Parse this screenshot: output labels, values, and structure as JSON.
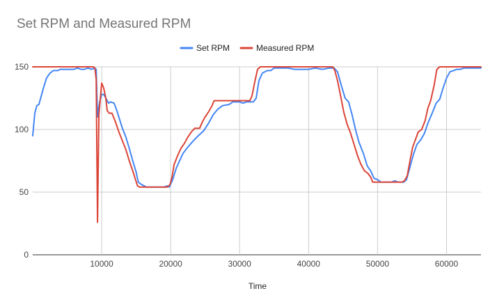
{
  "chart_data": {
    "type": "line",
    "title": "Set RPM and Measured RPM",
    "xlabel": "Time",
    "ylabel": "",
    "xlim": [
      0,
      65000
    ],
    "ylim": [
      0,
      150
    ],
    "xticks": [
      10000,
      20000,
      30000,
      40000,
      50000,
      60000
    ],
    "yticks": [
      0,
      50,
      100,
      150
    ],
    "grid": true,
    "legend_position": "top",
    "series": [
      {
        "name": "Set RPM",
        "color": "#4285F4",
        "points": [
          [
            0,
            95
          ],
          [
            300,
            113
          ],
          [
            600,
            119
          ],
          [
            900,
            120
          ],
          [
            1200,
            126
          ],
          [
            1600,
            134
          ],
          [
            2000,
            141
          ],
          [
            2500,
            145
          ],
          [
            3000,
            147
          ],
          [
            3600,
            147
          ],
          [
            4000,
            148
          ],
          [
            5000,
            148
          ],
          [
            6000,
            148
          ],
          [
            6500,
            149
          ],
          [
            7000,
            148
          ],
          [
            7500,
            148
          ],
          [
            8000,
            149
          ],
          [
            8500,
            148
          ],
          [
            9000,
            149
          ],
          [
            9200,
            148
          ],
          [
            9400,
            110
          ],
          [
            9700,
            122
          ],
          [
            10000,
            128
          ],
          [
            10300,
            128
          ],
          [
            10600,
            125
          ],
          [
            11000,
            121
          ],
          [
            11300,
            122
          ],
          [
            11800,
            121
          ],
          [
            12200,
            115
          ],
          [
            12600,
            108
          ],
          [
            13000,
            101
          ],
          [
            13500,
            94
          ],
          [
            14000,
            85
          ],
          [
            14500,
            75
          ],
          [
            15000,
            66
          ],
          [
            15300,
            58
          ],
          [
            15800,
            56
          ],
          [
            16500,
            54
          ],
          [
            18000,
            54
          ],
          [
            19000,
            54
          ],
          [
            19500,
            55
          ],
          [
            19800,
            54
          ],
          [
            20300,
            60
          ],
          [
            20800,
            69
          ],
          [
            21300,
            75
          ],
          [
            21800,
            81
          ],
          [
            22500,
            86
          ],
          [
            23300,
            91
          ],
          [
            24000,
            95
          ],
          [
            24800,
            99
          ],
          [
            25500,
            105
          ],
          [
            26200,
            112
          ],
          [
            26800,
            116
          ],
          [
            27500,
            119
          ],
          [
            28500,
            120
          ],
          [
            29000,
            122
          ],
          [
            30000,
            122
          ],
          [
            30500,
            121
          ],
          [
            31000,
            122
          ],
          [
            32000,
            122
          ],
          [
            32400,
            125
          ],
          [
            32800,
            139
          ],
          [
            33300,
            145
          ],
          [
            34000,
            147
          ],
          [
            34500,
            147
          ],
          [
            35000,
            149
          ],
          [
            36000,
            149
          ],
          [
            37000,
            149
          ],
          [
            38000,
            148
          ],
          [
            39000,
            148
          ],
          [
            40000,
            148
          ],
          [
            41000,
            149
          ],
          [
            42000,
            148
          ],
          [
            43000,
            149
          ],
          [
            43700,
            149
          ],
          [
            44200,
            146
          ],
          [
            44700,
            136
          ],
          [
            45300,
            125
          ],
          [
            45800,
            122
          ],
          [
            46300,
            112
          ],
          [
            46800,
            100
          ],
          [
            47300,
            90
          ],
          [
            48000,
            80
          ],
          [
            48500,
            71
          ],
          [
            49000,
            67
          ],
          [
            49500,
            61
          ],
          [
            50000,
            60
          ],
          [
            50500,
            58
          ],
          [
            51000,
            58
          ],
          [
            52000,
            58
          ],
          [
            52500,
            59
          ],
          [
            53000,
            58
          ],
          [
            53800,
            58
          ],
          [
            54200,
            60
          ],
          [
            54700,
            70
          ],
          [
            55200,
            80
          ],
          [
            55700,
            88
          ],
          [
            56300,
            92
          ],
          [
            56800,
            97
          ],
          [
            57300,
            105
          ],
          [
            58000,
            114
          ],
          [
            58500,
            121
          ],
          [
            59000,
            124
          ],
          [
            59500,
            133
          ],
          [
            60000,
            141
          ],
          [
            60500,
            146
          ],
          [
            61000,
            147
          ],
          [
            61500,
            148
          ],
          [
            62000,
            148
          ],
          [
            62500,
            149
          ],
          [
            64000,
            149
          ],
          [
            65000,
            149
          ]
        ]
      },
      {
        "name": "Measured RPM",
        "color": "#DB4437",
        "points": [
          [
            0,
            150
          ],
          [
            2000,
            150
          ],
          [
            4000,
            150
          ],
          [
            6000,
            150
          ],
          [
            7000,
            150
          ],
          [
            8000,
            150
          ],
          [
            8800,
            150
          ],
          [
            9000,
            149
          ],
          [
            9200,
            140
          ],
          [
            9400,
            26
          ],
          [
            9600,
            112
          ],
          [
            10000,
            137
          ],
          [
            10300,
            133
          ],
          [
            10600,
            125
          ],
          [
            10800,
            115
          ],
          [
            11100,
            113
          ],
          [
            11500,
            113
          ],
          [
            12000,
            106
          ],
          [
            12500,
            98
          ],
          [
            13000,
            91
          ],
          [
            13500,
            84
          ],
          [
            14000,
            75
          ],
          [
            14500,
            67
          ],
          [
            14900,
            60
          ],
          [
            15200,
            55
          ],
          [
            15500,
            54
          ],
          [
            17000,
            54
          ],
          [
            18500,
            54
          ],
          [
            19500,
            54
          ],
          [
            19900,
            56
          ],
          [
            20200,
            62
          ],
          [
            20500,
            72
          ],
          [
            21000,
            79
          ],
          [
            21500,
            85
          ],
          [
            22000,
            89
          ],
          [
            22500,
            94
          ],
          [
            23000,
            98
          ],
          [
            23500,
            101
          ],
          [
            24200,
            101
          ],
          [
            24600,
            106
          ],
          [
            25000,
            110
          ],
          [
            25500,
            114
          ],
          [
            26000,
            119
          ],
          [
            26300,
            123
          ],
          [
            27000,
            123
          ],
          [
            28000,
            123
          ],
          [
            29000,
            123
          ],
          [
            30000,
            123
          ],
          [
            31000,
            123
          ],
          [
            31500,
            123
          ],
          [
            31800,
            127
          ],
          [
            32200,
            138
          ],
          [
            32600,
            148
          ],
          [
            33000,
            150
          ],
          [
            34000,
            150
          ],
          [
            36000,
            150
          ],
          [
            38000,
            150
          ],
          [
            40000,
            150
          ],
          [
            42000,
            150
          ],
          [
            43500,
            150
          ],
          [
            43800,
            147
          ],
          [
            44200,
            139
          ],
          [
            44600,
            128
          ],
          [
            45100,
            114
          ],
          [
            45600,
            104
          ],
          [
            46100,
            97
          ],
          [
            46600,
            88
          ],
          [
            47100,
            79
          ],
          [
            47600,
            72
          ],
          [
            48100,
            67
          ],
          [
            48600,
            65
          ],
          [
            49000,
            62
          ],
          [
            49300,
            58
          ],
          [
            50000,
            58
          ],
          [
            51000,
            58
          ],
          [
            52000,
            58
          ],
          [
            53000,
            58
          ],
          [
            53500,
            58
          ],
          [
            53900,
            59
          ],
          [
            54300,
            63
          ],
          [
            54700,
            75
          ],
          [
            55100,
            86
          ],
          [
            55500,
            92
          ],
          [
            55900,
            98
          ],
          [
            56400,
            100
          ],
          [
            56900,
            107
          ],
          [
            57300,
            117
          ],
          [
            57700,
            123
          ],
          [
            58200,
            135
          ],
          [
            58600,
            148
          ],
          [
            59000,
            150
          ],
          [
            60000,
            150
          ],
          [
            62000,
            150
          ],
          [
            64000,
            150
          ],
          [
            65000,
            150
          ]
        ]
      }
    ]
  }
}
